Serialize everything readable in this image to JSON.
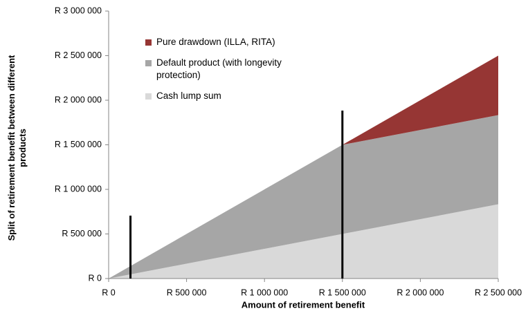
{
  "chart_data": {
    "type": "stacked_area",
    "x_label": "Amount of retirement benefit",
    "y_label": "Split of retirement benefit between different products",
    "x": [
      0,
      1500000,
      2500000
    ],
    "series": [
      {
        "name": "Cash lump sum",
        "color": "#d9d9d9",
        "values": [
          0,
          500000,
          833000
        ]
      },
      {
        "name": "Default product (with longevity protection)",
        "color": "#a6a6a6",
        "values": [
          0,
          1000000,
          1000000
        ]
      },
      {
        "name": "Pure drawdown (ILLA, RITA)",
        "color": "#963634",
        "values": [
          0,
          0,
          667000
        ]
      }
    ],
    "markers": [
      {
        "x": 140000,
        "y": 705000
      },
      {
        "x": 1500000,
        "y": 1884000
      }
    ],
    "xlim": [
      0,
      2500000
    ],
    "xticks": [
      {
        "value": 0,
        "label": "R 0"
      },
      {
        "value": 500000,
        "label": "R 500 000"
      },
      {
        "value": 1000000,
        "label": "R 1 000 000"
      },
      {
        "value": 1500000,
        "label": "R 1 500 000"
      },
      {
        "value": 2000000,
        "label": "R 2 000 000"
      },
      {
        "value": 2500000,
        "label": "R 2 500 000"
      }
    ],
    "ylim": [
      0,
      3000000
    ],
    "yticks": [
      {
        "value": 0,
        "label": "R 0"
      },
      {
        "value": 500000,
        "label": "R 500 000"
      },
      {
        "value": 1000000,
        "label": "R 1 000 000"
      },
      {
        "value": 1500000,
        "label": "R 1 500 000"
      },
      {
        "value": 2000000,
        "label": "R 2 000 000"
      },
      {
        "value": 2500000,
        "label": "R 2 500 000"
      },
      {
        "value": 3000000,
        "label": "R 3 000 000"
      }
    ],
    "legend": "upper left"
  }
}
